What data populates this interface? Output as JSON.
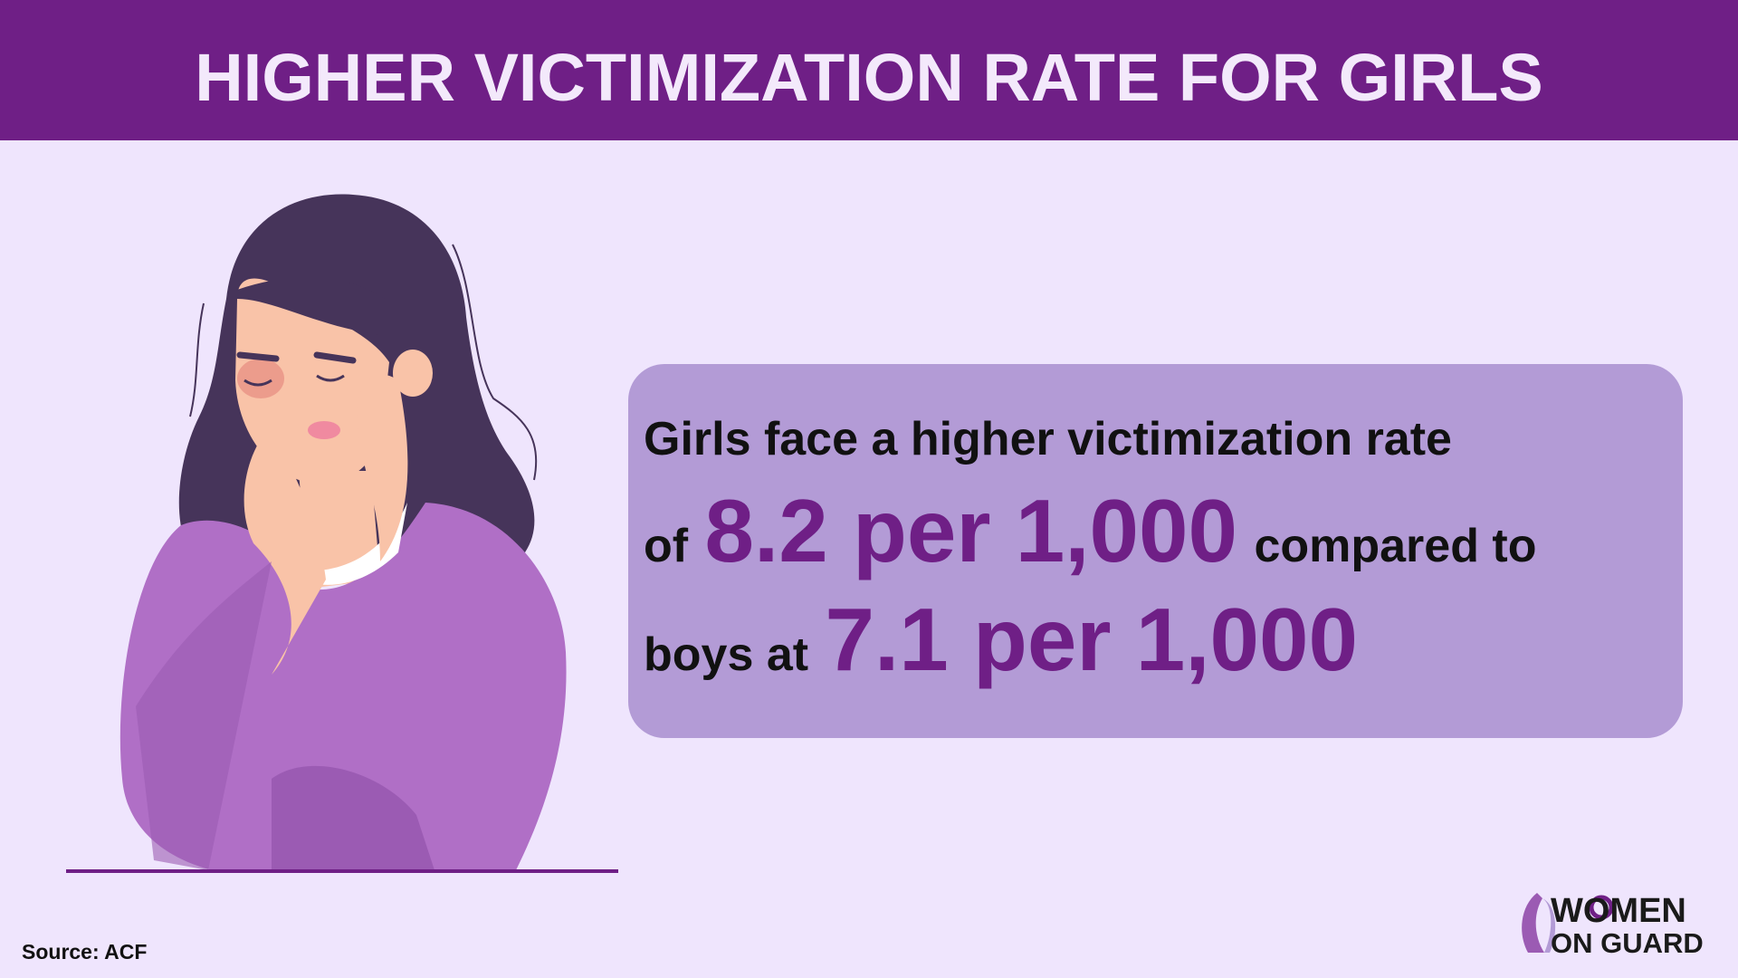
{
  "header": {
    "title": "HIGHER VICTIMIZATION RATE FOR GIRLS"
  },
  "callout": {
    "line1": "Girls face a higher victimization rate",
    "line2": [
      "of",
      "8.2 per 1,000",
      "compared to"
    ],
    "line3": [
      "boys at",
      "7.1 per 1,000"
    ]
  },
  "footer": {
    "source": "Source: ACF"
  },
  "logo": {
    "line1": "WOMEN",
    "line2": "ON GUARD"
  }
}
